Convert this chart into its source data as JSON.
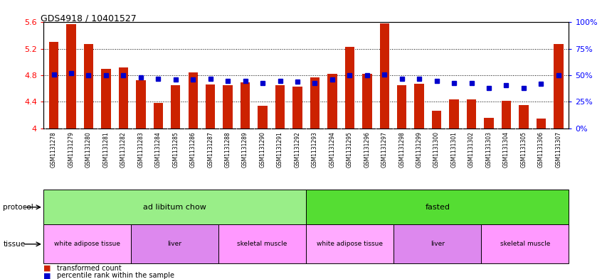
{
  "title": "GDS4918 / 10401527",
  "samples": [
    "GSM1131278",
    "GSM1131279",
    "GSM1131280",
    "GSM1131281",
    "GSM1131282",
    "GSM1131283",
    "GSM1131284",
    "GSM1131285",
    "GSM1131286",
    "GSM1131287",
    "GSM1131288",
    "GSM1131289",
    "GSM1131290",
    "GSM1131291",
    "GSM1131292",
    "GSM1131293",
    "GSM1131294",
    "GSM1131295",
    "GSM1131296",
    "GSM1131297",
    "GSM1131298",
    "GSM1131299",
    "GSM1131300",
    "GSM1131301",
    "GSM1131302",
    "GSM1131303",
    "GSM1131304",
    "GSM1131305",
    "GSM1131306",
    "GSM1131307"
  ],
  "bar_values": [
    5.3,
    5.57,
    5.27,
    4.9,
    4.92,
    4.73,
    4.38,
    4.65,
    4.84,
    4.66,
    4.65,
    4.69,
    4.34,
    4.65,
    4.63,
    4.77,
    4.82,
    5.23,
    4.82,
    5.58,
    4.65,
    4.67,
    4.27,
    4.44,
    4.44,
    4.16,
    4.42,
    4.35,
    4.15,
    5.27
  ],
  "dot_values": [
    51,
    52,
    50,
    50,
    50,
    48,
    47,
    46,
    46,
    47,
    45,
    45,
    43,
    45,
    44,
    43,
    46,
    50,
    50,
    51,
    47,
    47,
    45,
    43,
    43,
    38,
    41,
    38,
    42,
    50
  ],
  "ylim_left": [
    4.0,
    5.6
  ],
  "ylim_right": [
    0,
    100
  ],
  "yticks_left": [
    4.0,
    4.4,
    4.8,
    5.2,
    5.6
  ],
  "yticks_right": [
    0,
    25,
    50,
    75,
    100
  ],
  "ytick_labels_left": [
    "4",
    "4.4",
    "4.8",
    "5.2",
    "5.6"
  ],
  "ytick_labels_right": [
    "0%",
    "25%",
    "50%",
    "75%",
    "100%"
  ],
  "bar_color": "#CC2200",
  "dot_color": "#0000CC",
  "background_color": "#ffffff",
  "protocol_groups": [
    {
      "label": "ad libitum chow",
      "start": 0,
      "end": 14,
      "color": "#99EE88"
    },
    {
      "label": "fasted",
      "start": 15,
      "end": 29,
      "color": "#55DD33"
    }
  ],
  "tissue_groups": [
    {
      "label": "white adipose tissue",
      "start": 0,
      "end": 4,
      "color": "#FFAAFF"
    },
    {
      "label": "liver",
      "start": 5,
      "end": 9,
      "color": "#DD88EE"
    },
    {
      "label": "skeletal muscle",
      "start": 10,
      "end": 14,
      "color": "#FF99FF"
    },
    {
      "label": "white adipose tissue",
      "start": 15,
      "end": 19,
      "color": "#FFAAFF"
    },
    {
      "label": "liver",
      "start": 20,
      "end": 24,
      "color": "#DD88EE"
    },
    {
      "label": "skeletal muscle",
      "start": 25,
      "end": 29,
      "color": "#FF99FF"
    }
  ],
  "legend_items": [
    {
      "label": "transformed count",
      "color": "#CC2200"
    },
    {
      "label": "percentile rank within the sample",
      "color": "#0000CC"
    }
  ]
}
